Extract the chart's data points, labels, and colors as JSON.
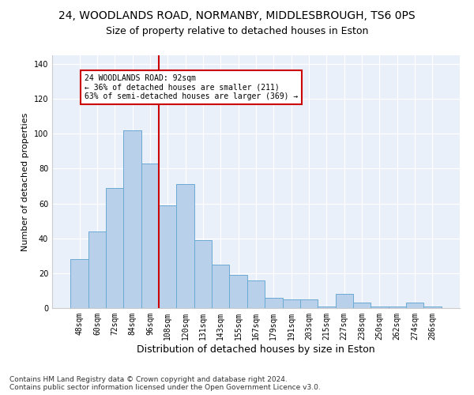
{
  "title1": "24, WOODLANDS ROAD, NORMANBY, MIDDLESBROUGH, TS6 0PS",
  "title2": "Size of property relative to detached houses in Eston",
  "xlabel": "Distribution of detached houses by size in Eston",
  "ylabel": "Number of detached properties",
  "categories": [
    "48sqm",
    "60sqm",
    "72sqm",
    "84sqm",
    "96sqm",
    "108sqm",
    "120sqm",
    "131sqm",
    "143sqm",
    "155sqm",
    "167sqm",
    "179sqm",
    "191sqm",
    "203sqm",
    "215sqm",
    "227sqm",
    "238sqm",
    "250sqm",
    "262sqm",
    "274sqm",
    "286sqm"
  ],
  "values": [
    28,
    44,
    69,
    102,
    83,
    59,
    71,
    39,
    25,
    19,
    16,
    6,
    5,
    5,
    1,
    8,
    3,
    1,
    1,
    3,
    1
  ],
  "bar_color": "#b8d0ea",
  "bar_edge_color": "#6aaad4",
  "vline_color": "#cc0000",
  "annotation_text": "24 WOODLANDS ROAD: 92sqm\n← 36% of detached houses are smaller (211)\n63% of semi-detached houses are larger (369) →",
  "annotation_box_color": "#ffffff",
  "annotation_box_edge": "#cc0000",
  "ylim": [
    0,
    145
  ],
  "yticks": [
    0,
    20,
    40,
    60,
    80,
    100,
    120,
    140
  ],
  "background_color": "#eaf0fa",
  "grid_color": "#ffffff",
  "footer": "Contains HM Land Registry data © Crown copyright and database right 2024.\nContains public sector information licensed under the Open Government Licence v3.0.",
  "title1_fontsize": 10,
  "title2_fontsize": 9,
  "xlabel_fontsize": 9,
  "ylabel_fontsize": 8,
  "footer_fontsize": 6.5,
  "tick_fontsize": 7
}
